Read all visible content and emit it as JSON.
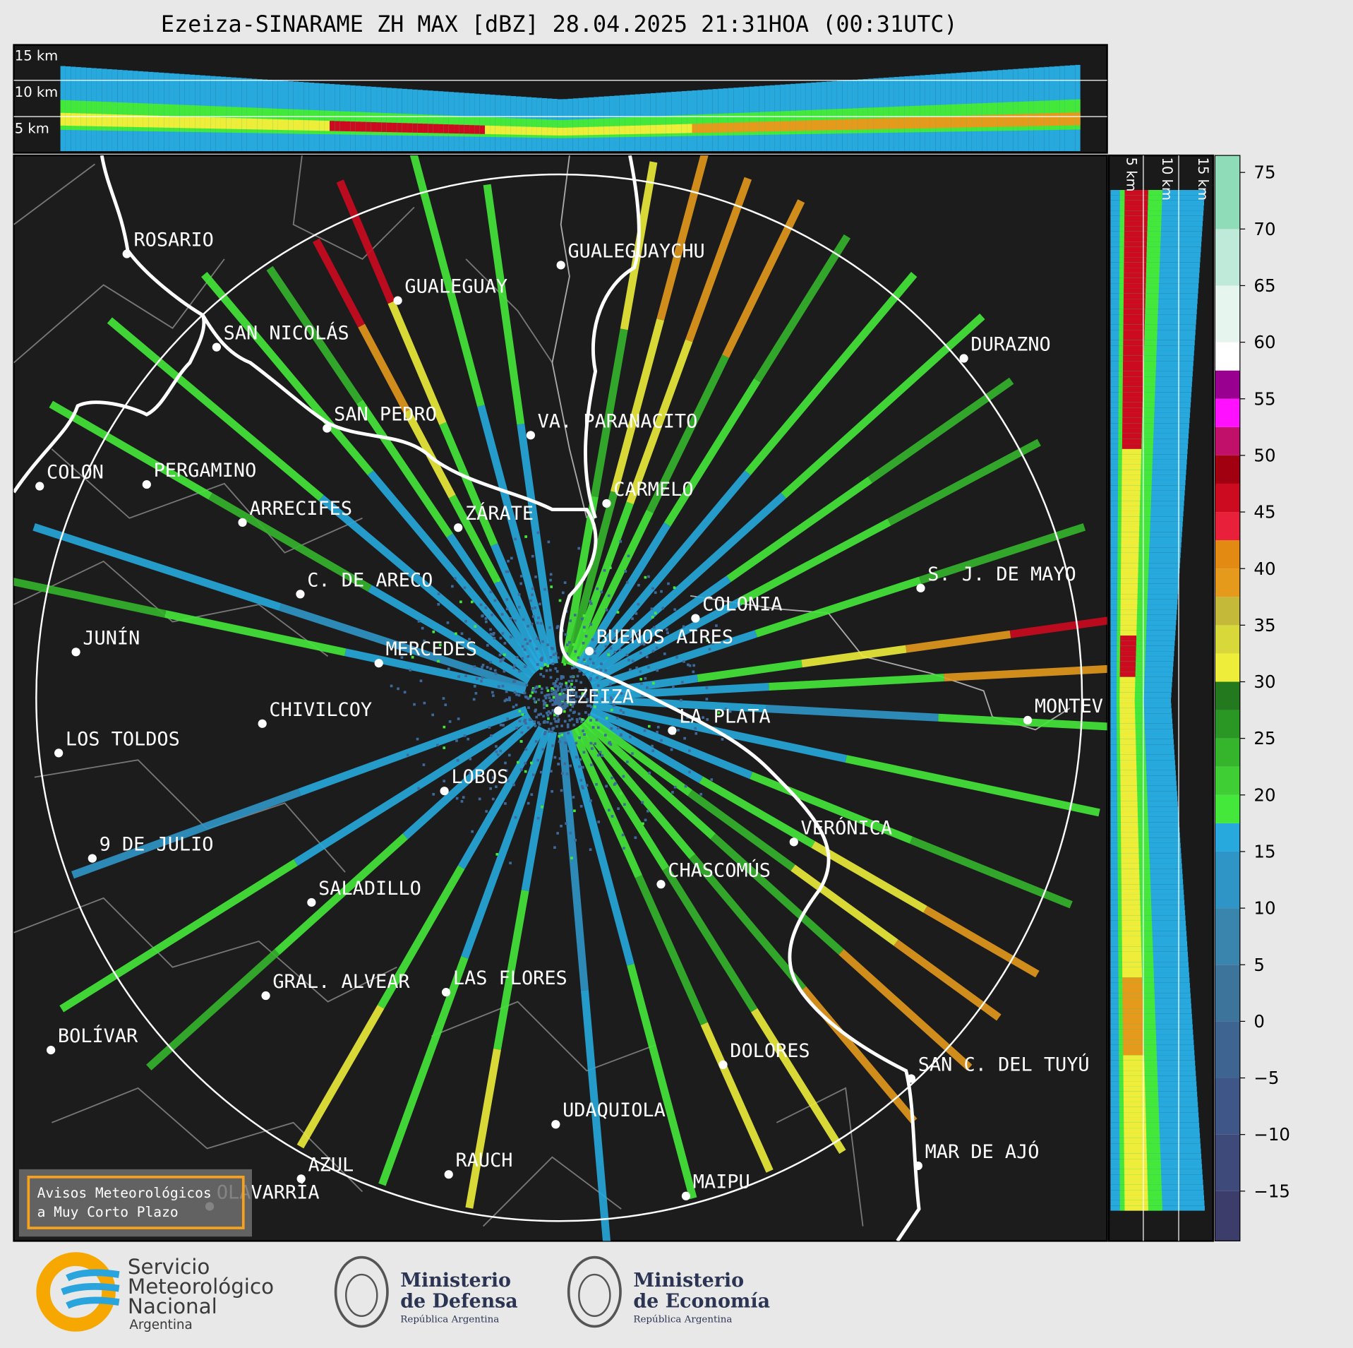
{
  "title": "Ezeiza-SINARAME ZH MAX [dBZ] 28.04.2025 21:31HOA (00:31UTC)",
  "profiles": {
    "top_labels": [
      "15 km",
      "10 km",
      "5 km"
    ],
    "side_labels": [
      "5 km",
      "10 km",
      "15 km"
    ]
  },
  "map": {
    "cities": [
      "ROSARIO",
      "GUALEGUAYCHU",
      "GUALEGUAY",
      "SAN NICOLÁS",
      "DURAZNO",
      "SAN PEDRO",
      "VA. PARANACITO",
      "COLON",
      "PERGAMINO",
      "CARMELO",
      "ARRECIFES",
      "ZÁRATE",
      "S. J. DE MAYO",
      "C. DE ARECO",
      "COLONIA",
      "JUNÍN",
      "BUENOS AIRES",
      "MERCEDES",
      "EZEIZA",
      "MONTEV",
      "CHIVILCOY",
      "LA PLATA",
      "LOS TOLDOS",
      "LOBOS",
      "VERÓNICA",
      "9 DE JULIO",
      "CHASCOMÚS",
      "SALADILLO",
      "GRAL. ALVEAR",
      "LAS FLORES",
      "BOLÍVAR",
      "DOLORES",
      "SAN C. DEL TUYÚ",
      "UDAQUIOLA",
      "MAR DE AJÓ",
      "RAUCH",
      "AZUL",
      "OLAVARRÍA",
      "MAIPU"
    ],
    "warning": [
      "Avisos Meteorológicos",
      "a Muy Corto Plazo"
    ]
  },
  "colorbar": {
    "lim": [
      -19.4,
      76.5
    ],
    "ticks": [
      {
        "value": -15,
        "label": "−15"
      },
      {
        "value": -10,
        "label": "−10"
      },
      {
        "value": -5,
        "label": "−5"
      },
      0,
      5,
      10,
      15,
      20,
      25,
      30,
      35,
      40,
      45,
      50,
      55,
      60,
      65,
      70,
      75
    ],
    "bounds": [
      -19.4,
      -15,
      -10,
      -5,
      0,
      5,
      10,
      15,
      17.5,
      20,
      22.5,
      25,
      27.5,
      30,
      32.5,
      35,
      37.5,
      40,
      42.5,
      45,
      47.5,
      50,
      52.5,
      55,
      57.5,
      60,
      65,
      70,
      76.5
    ],
    "colors": [
      "#3c3d6a",
      "#3d4a7a",
      "#3f5788",
      "#3e6592",
      "#3d749b",
      "#3a85ad",
      "#2f95c7",
      "#27a9dd",
      "#44e83a",
      "#3fcf34",
      "#35b52c",
      "#2a9624",
      "#237a1e",
      "#eded3a",
      "#d9d83a",
      "#c5b93a",
      "#e59a1c",
      "#e28a12",
      "#e8203a",
      "#cc0a20",
      "#a00010",
      "#c0106a",
      "#ff10ff",
      "#9a0090",
      "#ffffff",
      "#e6f5ee",
      "#bfe9d8",
      "#8edcb8"
    ]
  },
  "logos": {
    "smn": [
      "Servicio",
      "Meteorológico",
      "Nacional",
      "Argentina"
    ],
    "defensa": [
      "Ministerio",
      "de Defensa",
      "República Argentina"
    ],
    "economia": [
      "Ministerio",
      "de Economía",
      "República Argentina"
    ]
  }
}
